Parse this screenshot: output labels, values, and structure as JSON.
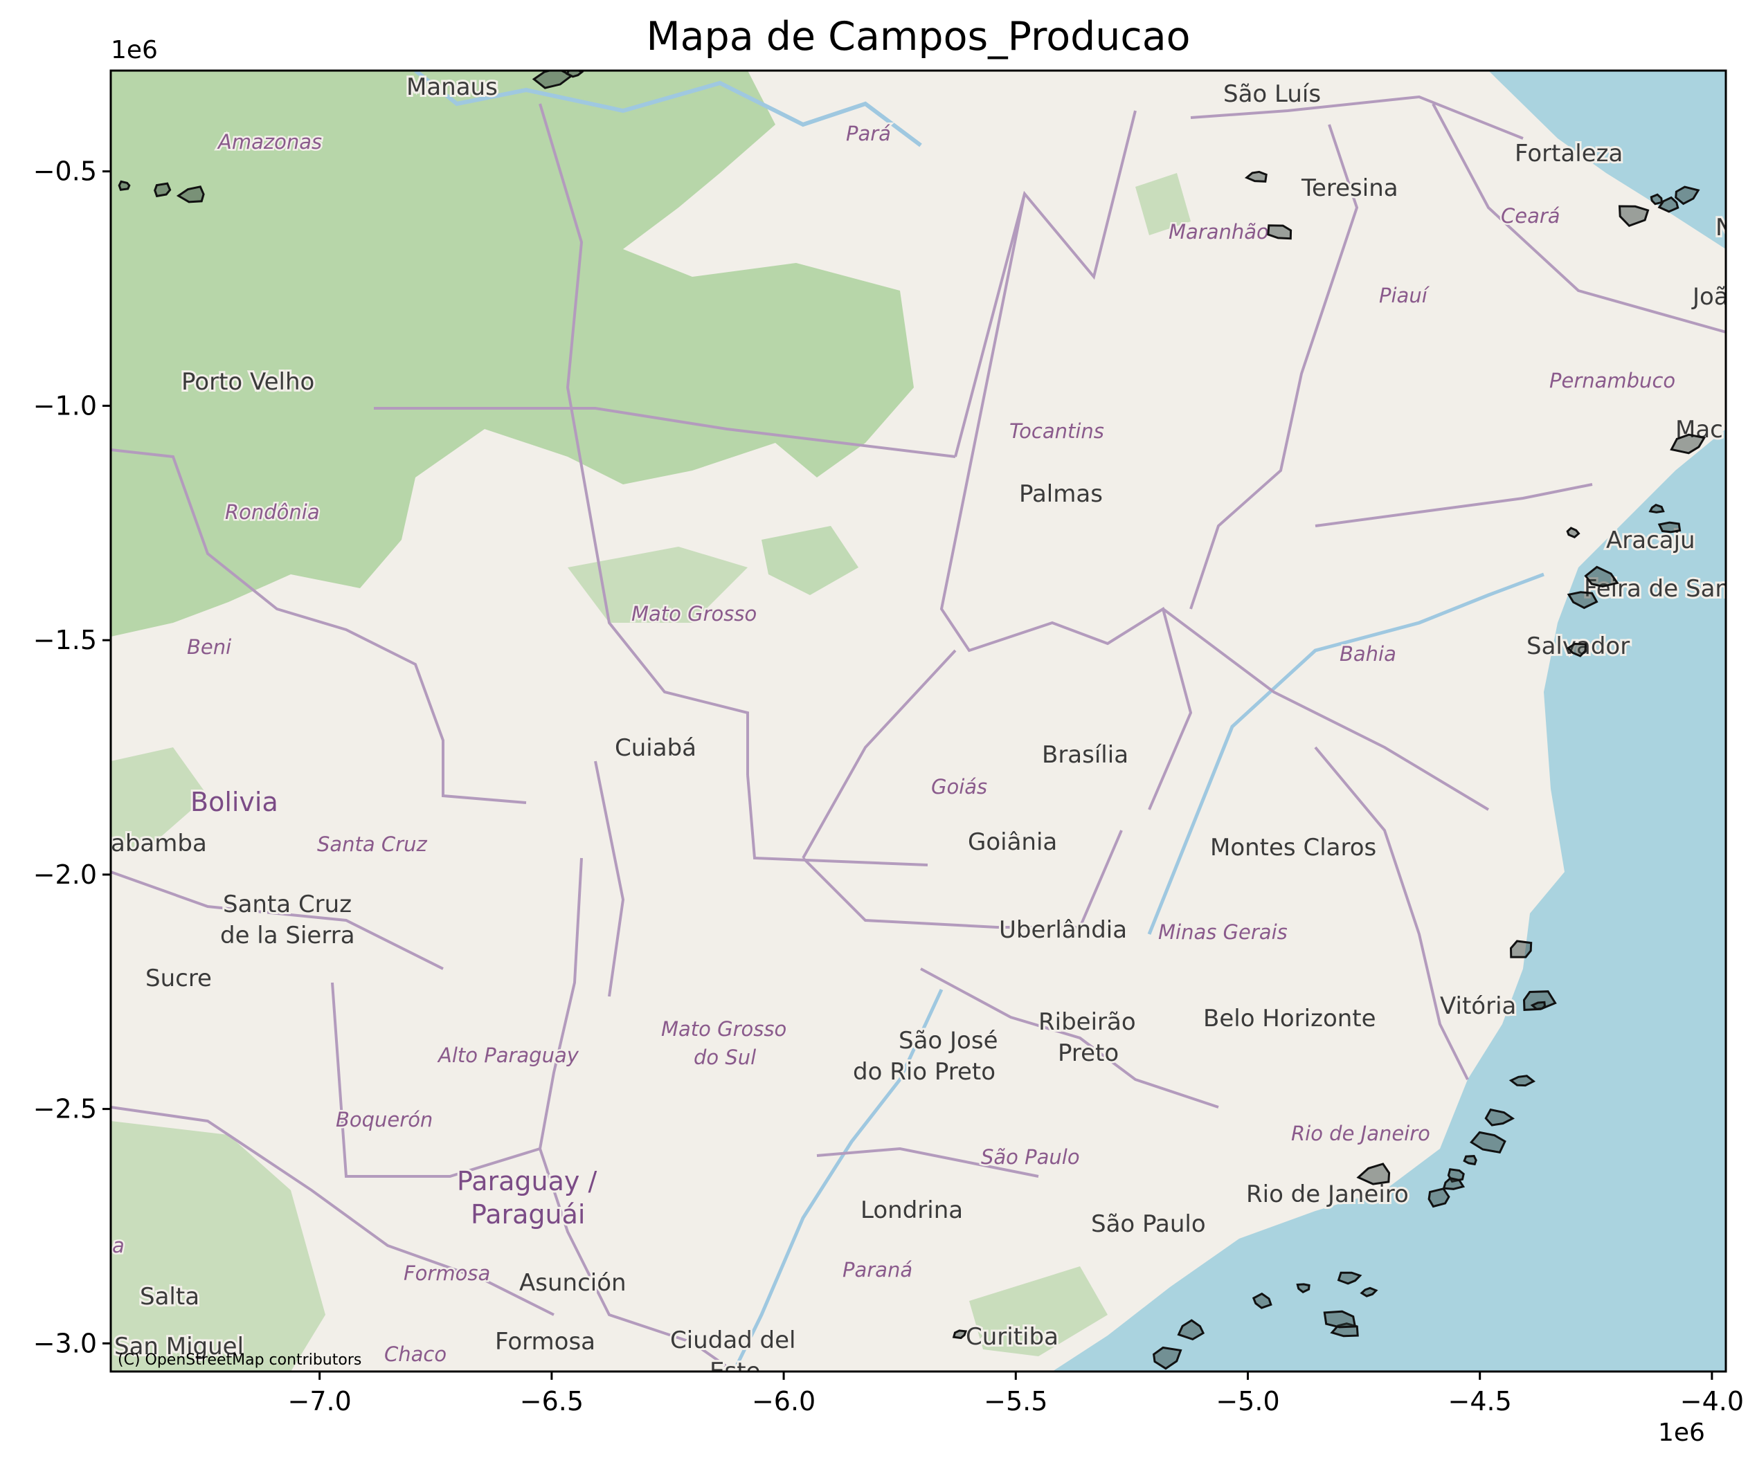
{
  "title": "Mapa de Campos_Producao",
  "x_offset_label": "1e6",
  "y_offset_label": "1e6",
  "attribution": "(C) OpenStreetMap contributors",
  "colors": {
    "ocean": "#aad3df",
    "land": "#f2efe9",
    "forest": "#add19e",
    "border": "#b39bbd",
    "field_outline": "#111111"
  },
  "chart_data": {
    "type": "scatter",
    "title": "Mapa de Campos_Producao",
    "xlim": [
      -7.45,
      -3.97
    ],
    "ylim": [
      -3.06,
      -0.285
    ],
    "x_ticks": [
      -7.0,
      -6.5,
      -6.0,
      -5.5,
      -5.0,
      -4.5,
      -4.0
    ],
    "x_tick_labels": [
      "−7.0",
      "−6.5",
      "−6.0",
      "−5.5",
      "−5.0",
      "−4.5",
      "−4.0"
    ],
    "y_ticks": [
      -0.5,
      -1.0,
      -1.5,
      -2.0,
      -2.5,
      -3.0
    ],
    "y_tick_labels": [
      "−0.5",
      "−1.0",
      "−1.5",
      "−2.0",
      "−2.5",
      "−3.0"
    ],
    "x_scale_label": "1e6",
    "y_scale_label": "1e6",
    "grid": false,
    "legend": "none",
    "series": [
      {
        "x": [
          -7.42,
          -7.34,
          -7.27,
          -6.5,
          -6.45,
          -4.98,
          -4.93,
          -4.17,
          -4.12,
          -4.09,
          -4.06,
          -4.05,
          -4.12,
          -4.09,
          -4.28,
          -4.24,
          -4.3,
          -4.29,
          -4.41,
          -4.38,
          -4.37,
          -4.41,
          -4.46,
          -4.48,
          -4.52,
          -4.55,
          -4.59,
          -4.72,
          -4.74,
          -4.78,
          -4.79,
          -4.8,
          -4.88,
          -4.97,
          -5.12,
          -5.18,
          -5.62,
          -4.56
        ],
        "y": [
          -0.53,
          -0.54,
          -0.55,
          -0.3,
          -0.29,
          -0.51,
          -0.63,
          -0.59,
          -0.56,
          -0.57,
          -0.55,
          -1.08,
          -1.22,
          -1.26,
          -1.41,
          -1.37,
          -1.27,
          -1.52,
          -2.16,
          -2.27,
          -2.28,
          -2.44,
          -2.52,
          -2.57,
          -2.61,
          -2.64,
          -2.69,
          -2.64,
          -2.89,
          -2.86,
          -2.97,
          -2.95,
          -2.88,
          -2.91,
          -2.97,
          -3.03,
          -2.98,
          -2.66
        ]
      }
    ]
  },
  "map_labels": {
    "places": [
      "Manaus",
      "São Luís",
      "Fortaleza",
      "Teresina",
      "Joã",
      "Porto Velho",
      "Mac",
      "Palmas",
      "Aracaju",
      "Feira de Santa",
      "Salvador",
      "Cuiabá",
      "Brasília",
      "Goiânia",
      "Montes Claros",
      "abamba",
      "Santa Cruz",
      "de la Sierra",
      "Sucre",
      "Uberlândia",
      "Vitória",
      "São José",
      "do Rio Preto",
      "Ribeirão",
      "Preto",
      "Belo Horizonte",
      "Rio de Janeiro",
      "Londrina",
      "São Paulo",
      "Salta",
      "Asunción",
      "San Miguel",
      "Formosa",
      "Ciudad del",
      "Este",
      "Curitiba",
      "N"
    ],
    "states": [
      "Amazonas",
      "Pará",
      "Ceará",
      "Maranhão",
      "Piauí",
      "Pernambuco",
      "Tocantins",
      "Rondônia",
      "Mato Grosso",
      "Bahia",
      "Beni",
      "Goiás",
      "Santa Cruz",
      "Minas Gerais",
      "Mato Grosso",
      "do Sul",
      "Alto Paraguay",
      "Boquerón",
      "Rio de Janeiro",
      "São Paulo",
      "Formosa",
      "Paraná",
      "Chaco",
      "a"
    ],
    "countries": [
      "Bolivia",
      "Paraguay /",
      "Paraguái"
    ]
  }
}
